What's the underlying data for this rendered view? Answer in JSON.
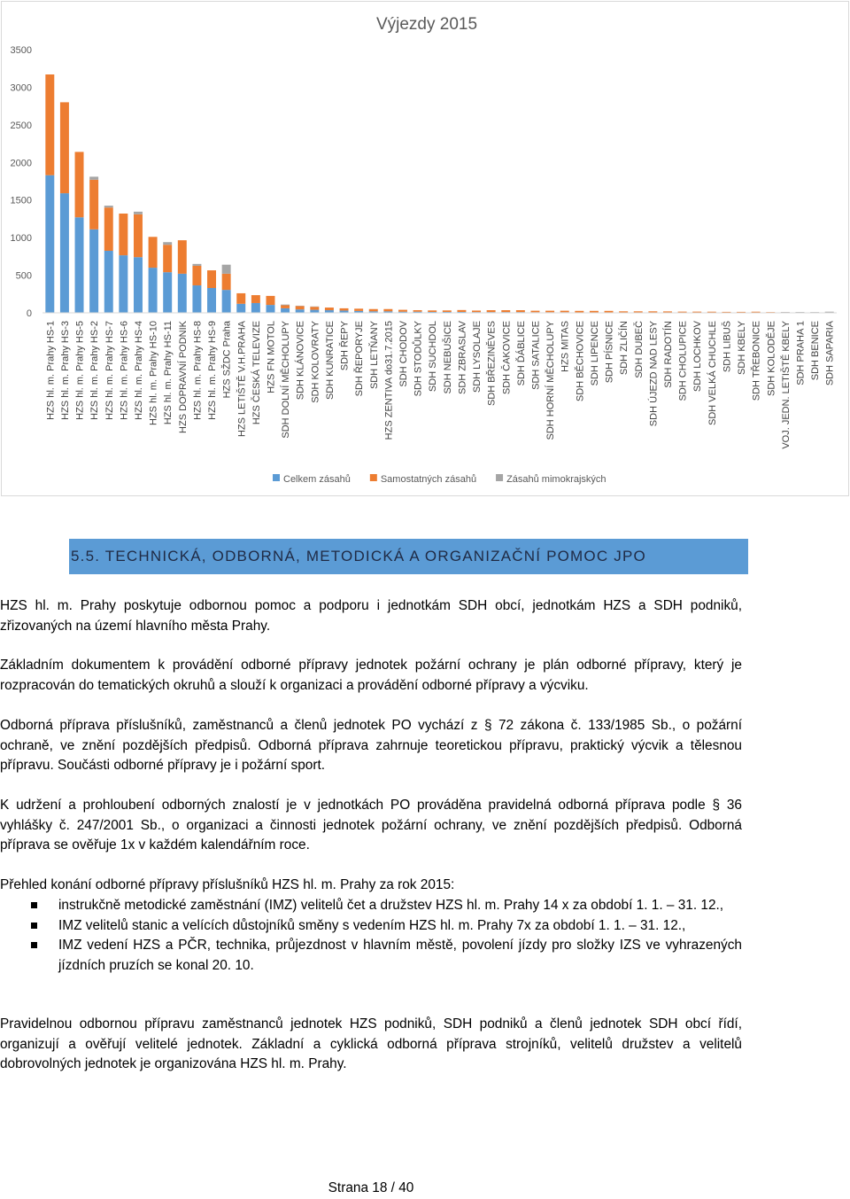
{
  "chart_data": {
    "type": "bar",
    "stacked": true,
    "title": "Výjezdy 2015",
    "categories": [
      "HZS hl. m. Prahy HS-1",
      "HZS hl. m. Prahy HS-3",
      "HZS hl. m. Prahy HS-5",
      "HZS hl. m. Prahy HS-2",
      "HZS hl. m. Prahy HS-7",
      "HZS hl. m. Prahy HS-6",
      "HZS hl. m. Prahy HS-4",
      "HZS hl. m. Prahy HS-10",
      "HZS hl. m. Prahy HS-11",
      "HZS DOPRAVNÍ PODNIK",
      "HZS hl. m. Prahy HS-8",
      "HZS hl. m. Prahy HS-9",
      "HZS SŽDC Praha",
      "HZS LETIŠTĚ V.H.PRAHA",
      "HZS ČESKÁ TELEVIZE",
      "HZS FN MOTOL",
      "SDH DOLNÍ MĚCHOLUPY",
      "SDH KLÁNOVICE",
      "SDH KOLOVRATY",
      "SDH KUNRATICE",
      "SDH ŘEPY",
      "SDH ŘEPORYJE",
      "SDH LETŇANY",
      "HZS ZENTIVA do31.7.2015",
      "SDH CHODOV",
      "SDH STODŮLKY",
      "SDH SUCHDOL",
      "SDH NEBUŠICE",
      "SDH ZBRASLAV",
      "SDH LYSOLAJE",
      "SDH BŘEZINĚVES",
      "SDH ČAKOVICE",
      "SDH ĎÁBLICE",
      "SDH SATALICE",
      "SDH HORNÍ MĚCHOLUPY",
      "HZS MITAS",
      "SDH BĚCHOVICE",
      "SDH LIPENCE",
      "SDH PÍSNICE",
      "SDH ZLIČÍN",
      "SDH DUBEČ",
      "SDH ÚJEZD NAD LESY",
      "SDH RADOTÍN",
      "SDH CHOLUPICE",
      "SDH LOCHKOV",
      "SDH VELKÁ CHUCHLE",
      "SDH LIBUŠ",
      "SDH KBELY",
      "SDH TŘEBONICE",
      "SDH KOLODĚJE",
      "VOJ. JEDN. LETIŠTĚ KBELY",
      "SDH PRAHA 1",
      "SDH BENICE",
      "SDH SAPARIA"
    ],
    "series": [
      {
        "name": "Celkem zásahů",
        "color": "#5b9bd5",
        "values": [
          1830,
          1590,
          1270,
          1110,
          825,
          765,
          740,
          600,
          540,
          520,
          365,
          330,
          305,
          120,
          130,
          105,
          60,
          45,
          40,
          35,
          30,
          25,
          20,
          20,
          15,
          15,
          12,
          12,
          12,
          10,
          10,
          10,
          10,
          8,
          8,
          8,
          6,
          6,
          6,
          5,
          5,
          5,
          4,
          4,
          4,
          3,
          3,
          3,
          3,
          2,
          2,
          1,
          1,
          1
        ]
      },
      {
        "name": "Samostatných zásahů",
        "color": "#ed7d31",
        "values": [
          1340,
          1210,
          870,
          660,
          575,
          555,
          570,
          410,
          365,
          445,
          260,
          235,
          215,
          140,
          105,
          120,
          40,
          45,
          40,
          35,
          30,
          30,
          30,
          30,
          25,
          20,
          20,
          20,
          25,
          20,
          25,
          25,
          25,
          20,
          20,
          20,
          20,
          20,
          20,
          15,
          15,
          15,
          15,
          12,
          12,
          12,
          10,
          10,
          12,
          8,
          5,
          5,
          4,
          4
        ]
      },
      {
        "name": "Zásahů mimokrajských",
        "color": "#a5a5a5",
        "values": [
          0,
          0,
          0,
          40,
          25,
          0,
          35,
          0,
          35,
          0,
          25,
          0,
          120,
          0,
          0,
          0,
          10,
          5,
          5,
          0,
          0,
          0,
          0,
          0,
          0,
          0,
          0,
          0,
          0,
          0,
          0,
          0,
          0,
          0,
          0,
          0,
          0,
          0,
          0,
          0,
          0,
          0,
          0,
          0,
          0,
          0,
          0,
          0,
          0,
          0,
          5,
          5,
          5,
          10
        ]
      }
    ],
    "ylim": [
      0,
      3500
    ],
    "yticks": [
      0,
      500,
      1000,
      1500,
      2000,
      2500,
      3000,
      3500
    ],
    "grid": false,
    "legend": "bottom"
  },
  "document": {
    "heading": "5.5. TECHNICKÁ, ODBORNÁ, METODICKÁ A ORGANIZAČNÍ POMOC JPO",
    "paragraphs": [
      "HZS hl. m. Prahy poskytuje odbornou pomoc a podporu i jednotkám SDH obcí, jednotkám HZS a SDH podniků, zřizovaných na území hlavního města Prahy.",
      "Základním dokumentem k provádění odborné přípravy jednotek požární ochrany je plán odborné přípravy, který je rozpracován do tematických okruhů a slouží k organizaci a provádění odborné přípravy a výcviku.",
      "Odborná příprava příslušníků, zaměstnanců a členů jednotek PO vychází z § 72 zákona č. 133/1985 Sb., o požární ochraně, ve znění pozdějších předpisů. Odborná příprava zahrnuje teoretickou přípravu, praktický výcvik a tělesnou přípravu. Součásti odborné přípravy je i požární sport.",
      "K udržení a prohloubení odborných znalostí je v jednotkách PO prováděna pravidelná odborná příprava podle § 36 vyhlášky č. 247/2001 Sb., o organizaci a činnosti jednotek požární ochrany, ve znění pozdějších předpisů. Odborná příprava se ověřuje 1x v každém kalendářním roce.",
      "Přehled konání odborné přípravy příslušníků HZS hl. m. Prahy za rok 2015:"
    ],
    "bullets": [
      "instrukčně metodické zaměstnání (IMZ) velitelů čet a družstev HZS hl. m. Prahy 14 x za období 1. 1. – 31. 12.,",
      "IMZ velitelů stanic a velících důstojníků směny s vedením HZS hl. m. Prahy 7x za období 1. 1. – 31. 12.,",
      "IMZ vedení HZS a PČR, technika, průjezdnost v hlavním městě, povolení jízdy pro složky IZS ve vyhrazených jízdních pruzích se konal 20. 10."
    ],
    "closing": "Pravidelnou odbornou přípravu zaměstnanců jednotek HZS podniků, SDH podniků a členů jednotek SDH obcí řídí, organizují a ověřují velitelé jednotek. Základní a cyklická odborná příprava strojníků, velitelů družstev a velitelů dobrovolných jednotek je organizována HZS hl. m. Prahy.",
    "footer": "Strana 18 / 40"
  }
}
